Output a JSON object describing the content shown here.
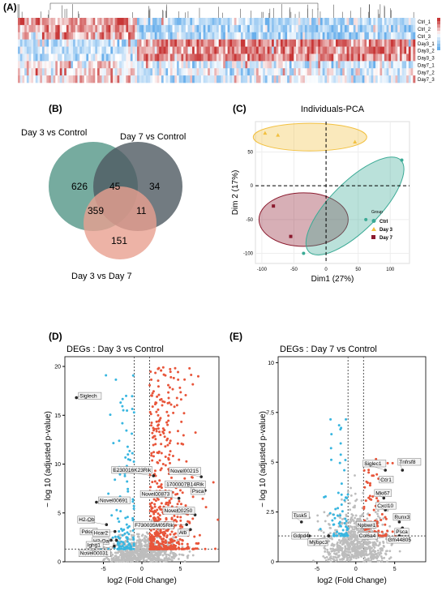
{
  "panels": {
    "A": {
      "label": "(A)"
    },
    "B": {
      "label": "(B)"
    },
    "C": {
      "label": "(C)"
    },
    "D": {
      "label": "(D)"
    },
    "E": {
      "label": "(E)"
    }
  },
  "heatmap": {
    "rows": [
      "Ctrl_1",
      "Ctrl_2",
      "Ctrl_3",
      "Day3_1",
      "Day3_2",
      "Day3_3",
      "Day7_1",
      "Day7_2",
      "Day7_3"
    ]
  },
  "venn": {
    "labels": {
      "a": "Day 3 vs Control",
      "b": "Day 7 vs Control",
      "c": "Day 3 vs Day 7"
    },
    "counts": {
      "a_only": "626",
      "ab": "45",
      "b_only": "34",
      "ac": "359",
      "bc": "11",
      "c_only": "151"
    },
    "colors": {
      "a": "#5e9c8e",
      "b": "#4f5a62",
      "c": "#e8a090"
    }
  },
  "chart_data": [
    {
      "type": "scatter",
      "title": "Individuals-PCA",
      "xlabel": "Dim1 (27%)",
      "ylabel": "Dim 2 (17%)",
      "xlim": [
        -110,
        130
      ],
      "ylim": [
        -115,
        95
      ],
      "xticks": [
        -100,
        -50,
        0,
        50,
        100
      ],
      "yticks": [
        50,
        0,
        -50,
        -100
      ],
      "legend": {
        "title": "Group",
        "placement": "right"
      },
      "series": [
        {
          "name": "Ctrl",
          "color": "#3aaa95",
          "marker": "circle",
          "points": [
            [
              118,
              38
            ],
            [
              62,
              -50
            ],
            [
              -35,
              -100
            ]
          ]
        },
        {
          "name": "Day 3",
          "color": "#f2c040",
          "marker": "triangle",
          "points": [
            [
              -95,
              78
            ],
            [
              -75,
              75
            ],
            [
              45,
              65
            ]
          ]
        },
        {
          "name": "Day 7",
          "color": "#8b1a2e",
          "marker": "square",
          "points": [
            [
              -82,
              -30
            ],
            [
              -55,
              -75
            ]
          ]
        }
      ]
    },
    {
      "type": "scatter",
      "title": "DEGs : Day 3 vs Control",
      "xlabel": "log2 (Fold Change)",
      "ylabel": "− log 10 (adjusted p-value)",
      "xlim": [
        -10,
        10
      ],
      "ylim": [
        0,
        21
      ],
      "xticks": [
        -5,
        0,
        5
      ],
      "yticks": [
        0,
        5,
        10,
        15,
        20
      ],
      "labeled_genes": [
        {
          "name": "Siglech",
          "x": -8.5,
          "y": 16.8
        },
        {
          "name": "Novel00691",
          "x": -5.9,
          "y": 6.1
        },
        {
          "name": "H2-Ob",
          "x": -4.6,
          "y": 3.8
        },
        {
          "name": "Pdcd1",
          "x": -4.9,
          "y": 3.0
        },
        {
          "name": "Hcar2",
          "x": -3.5,
          "y": 3.1
        },
        {
          "name": "H2-Oa",
          "x": -4.0,
          "y": 2.2
        },
        {
          "name": "Ighg1",
          "x": -3.3,
          "y": 2.2
        },
        {
          "name": "Novel00031",
          "x": -3.6,
          "y": 1.6
        },
        {
          "name": "E230016K23Rik",
          "x": 1.5,
          "y": 8.8
        },
        {
          "name": "Novel00215",
          "x": 7.7,
          "y": 8.7
        },
        {
          "name": "1700007B14Rik",
          "x": 7.8,
          "y": 7.5
        },
        {
          "name": "Psca",
          "x": 8.2,
          "y": 7.3
        },
        {
          "name": "Novel00873",
          "x": 4.8,
          "y": 6.5
        },
        {
          "name": "Novel00250",
          "x": 6.9,
          "y": 4.8
        },
        {
          "name": "F730035M05Rik",
          "x": 5.8,
          "y": 3.8
        },
        {
          "name": "Alb",
          "x": 6.3,
          "y": 3.3
        }
      ]
    },
    {
      "type": "scatter",
      "title": "DEGs : Day 7 vs Control",
      "xlabel": "log2 (Fold Change)",
      "ylabel": "− log 10 (adjusted p-value)",
      "xlim": [
        -10,
        9
      ],
      "ylim": [
        0,
        10.3
      ],
      "xticks": [
        -5,
        0,
        5
      ],
      "yticks": [
        0,
        2.5,
        5.0,
        7.5,
        10.0
      ],
      "labeled_genes": [
        {
          "name": "Siglec1",
          "x": 3.8,
          "y": 4.6
        },
        {
          "name": "Tnfrsf8",
          "x": 6.0,
          "y": 4.6
        },
        {
          "name": "Ccr1",
          "x": 4.0,
          "y": 4.2
        },
        {
          "name": "Mki67",
          "x": 3.6,
          "y": 3.2
        },
        {
          "name": "Cxcl10",
          "x": 3.8,
          "y": 2.6
        },
        {
          "name": "Runx3",
          "x": 5.6,
          "y": 2.0
        },
        {
          "name": "Tssk5",
          "x": -7.0,
          "y": 2.0
        },
        {
          "name": "Npbwr1",
          "x": 2.3,
          "y": 1.8
        },
        {
          "name": "Psca",
          "x": 6.0,
          "y": 1.7
        },
        {
          "name": "Gdpd4",
          "x": -6.0,
          "y": 1.3
        },
        {
          "name": "Col6a4",
          "x": 2.7,
          "y": 1.3
        },
        {
          "name": "Gm44805",
          "x": 5.6,
          "y": 1.3
        },
        {
          "name": "Mybpc3",
          "x": -3.5,
          "y": 1.3
        }
      ]
    }
  ]
}
